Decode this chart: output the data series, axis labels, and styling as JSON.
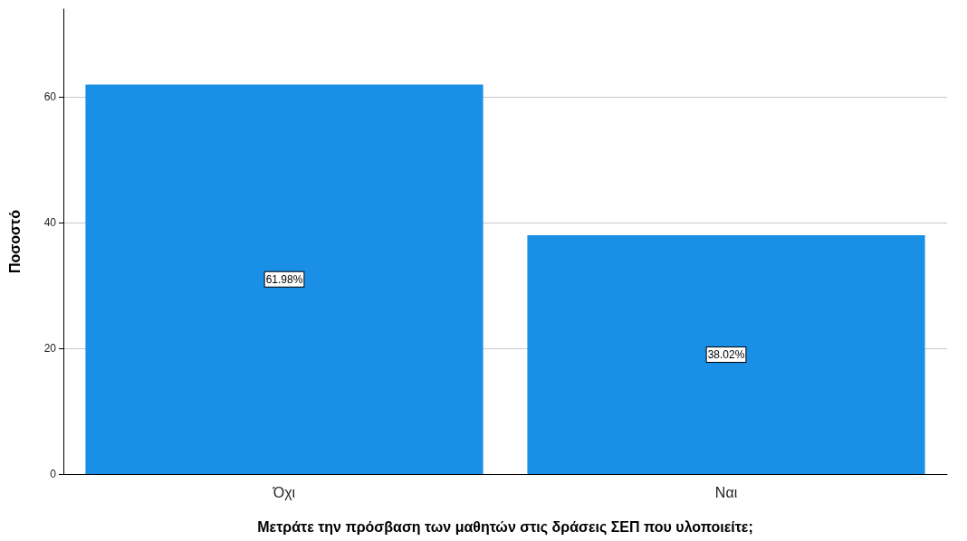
{
  "chart_data": {
    "type": "bar",
    "xlabel": "Μετράτε την πρόσβαση των μαθητών στις δράσεις ΣΕΠ που υλοποιείτε;",
    "ylabel": "Ποσοστό",
    "categories": [
      "Όχι",
      "Ναι"
    ],
    "values": [
      61.98,
      38.02
    ],
    "value_labels": [
      "61.98%",
      "38.02%"
    ],
    "color": "#1990e6",
    "ylim": [
      0,
      74
    ],
    "yticks": [
      0,
      20,
      40,
      60
    ],
    "grid": "y"
  }
}
